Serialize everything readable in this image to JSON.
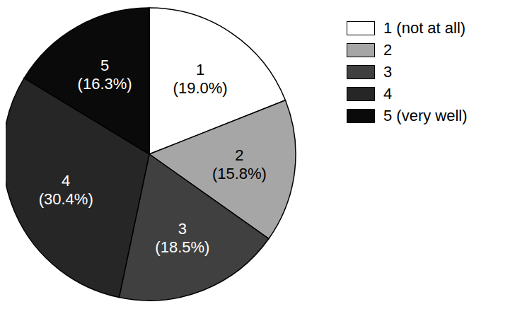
{
  "chart_data": {
    "type": "pie",
    "categories": [
      "1 (not at all)",
      "2",
      "3",
      "4",
      "5 (very well)"
    ],
    "slice_labels": [
      "1",
      "2",
      "3",
      "4",
      "5"
    ],
    "values": [
      19.0,
      15.8,
      18.5,
      30.4,
      16.3
    ],
    "value_labels": [
      "(19.0%)",
      "(15.8%)",
      "(18.5%)",
      "(30.4%)",
      "(16.3%)"
    ],
    "colors": [
      "#ffffff",
      "#a6a6a6",
      "#404040",
      "#262626",
      "#0a0a0a"
    ],
    "data_labels": true,
    "legend": "right"
  }
}
